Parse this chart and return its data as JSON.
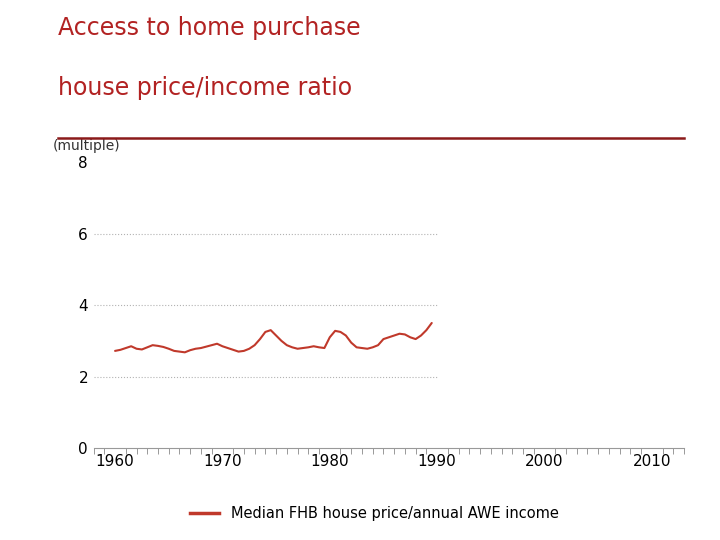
{
  "title_line1": "Access to home purchase",
  "title_line2": "house price/income ratio",
  "title_color": "#b22222",
  "ylabel": "(multiple)",
  "line_color": "#c0392b",
  "line_label": "Median FHB house price/annual AWE income",
  "xlim": [
    1958,
    2013
  ],
  "ylim": [
    0,
    8
  ],
  "yticks": [
    0,
    2,
    4,
    6,
    8
  ],
  "xticks": [
    1960,
    1970,
    1980,
    1990,
    2000,
    2010
  ],
  "grid_color": "#aaaaaa",
  "grid_end_x": 1990,
  "background_color": "#ffffff",
  "separator_color": "#8b1a1a",
  "years": [
    1960.0,
    1960.5,
    1961.0,
    1961.5,
    1962.0,
    1962.5,
    1963.0,
    1963.5,
    1964.0,
    1964.5,
    1965.0,
    1965.5,
    1966.0,
    1966.5,
    1967.0,
    1967.5,
    1968.0,
    1968.5,
    1969.0,
    1969.5,
    1970.0,
    1970.5,
    1971.0,
    1971.5,
    1972.0,
    1972.5,
    1973.0,
    1973.5,
    1974.0,
    1974.5,
    1975.0,
    1975.5,
    1976.0,
    1976.5,
    1977.0,
    1977.5,
    1978.0,
    1978.5,
    1979.0,
    1979.5,
    1980.0,
    1980.5,
    1981.0,
    1981.5,
    1982.0,
    1982.5,
    1983.0,
    1983.5,
    1984.0,
    1984.5,
    1985.0,
    1985.5,
    1986.0,
    1986.5,
    1987.0,
    1987.5,
    1988.0,
    1988.5,
    1989.0,
    1989.5
  ],
  "values": [
    2.72,
    2.75,
    2.8,
    2.85,
    2.78,
    2.76,
    2.82,
    2.88,
    2.86,
    2.83,
    2.78,
    2.72,
    2.7,
    2.68,
    2.74,
    2.78,
    2.8,
    2.84,
    2.88,
    2.92,
    2.85,
    2.8,
    2.75,
    2.7,
    2.72,
    2.78,
    2.88,
    3.05,
    3.25,
    3.3,
    3.15,
    3.0,
    2.88,
    2.82,
    2.78,
    2.8,
    2.82,
    2.85,
    2.82,
    2.8,
    3.1,
    3.28,
    3.25,
    3.15,
    2.95,
    2.82,
    2.8,
    2.78,
    2.82,
    2.88,
    3.05,
    3.1,
    3.15,
    3.2,
    3.18,
    3.1,
    3.05,
    3.15,
    3.3,
    3.5
  ]
}
